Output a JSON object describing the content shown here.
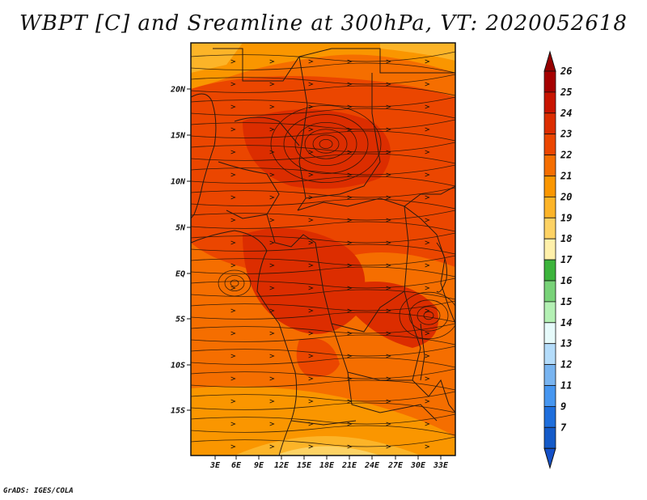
{
  "title": "WBPT [C] and Sreamline at 300hPa, VT: 2020052618",
  "credit": "GrADS: IGES/COLA",
  "map": {
    "lat_labels": [
      "20N",
      "15N",
      "10N",
      "5N",
      "EQ",
      "5S",
      "10S",
      "15S"
    ],
    "lon_labels": [
      "3E",
      "6E",
      "9E",
      "12E",
      "15E",
      "18E",
      "21E",
      "24E",
      "27E",
      "30E",
      "33E"
    ]
  },
  "colorbar": {
    "labels": [
      "26",
      "25",
      "24",
      "23",
      "22",
      "21",
      "20",
      "19",
      "18",
      "17",
      "16",
      "15",
      "14",
      "13",
      "12",
      "11",
      "9",
      "7"
    ],
    "colors": [
      "#a50000",
      "#c81400",
      "#dc2d00",
      "#eb4600",
      "#f56e00",
      "#fa9600",
      "#fcb428",
      "#fdd264",
      "#fff0aa",
      "#3cb43c",
      "#78d278",
      "#b4f0b4",
      "#e6fafa",
      "#b4dcfa",
      "#78b4f0",
      "#4696f0",
      "#1e6edc",
      "#145ac8"
    ],
    "top_arrow_color": "#960000",
    "bottom_arrow_color": "#1450c8"
  }
}
